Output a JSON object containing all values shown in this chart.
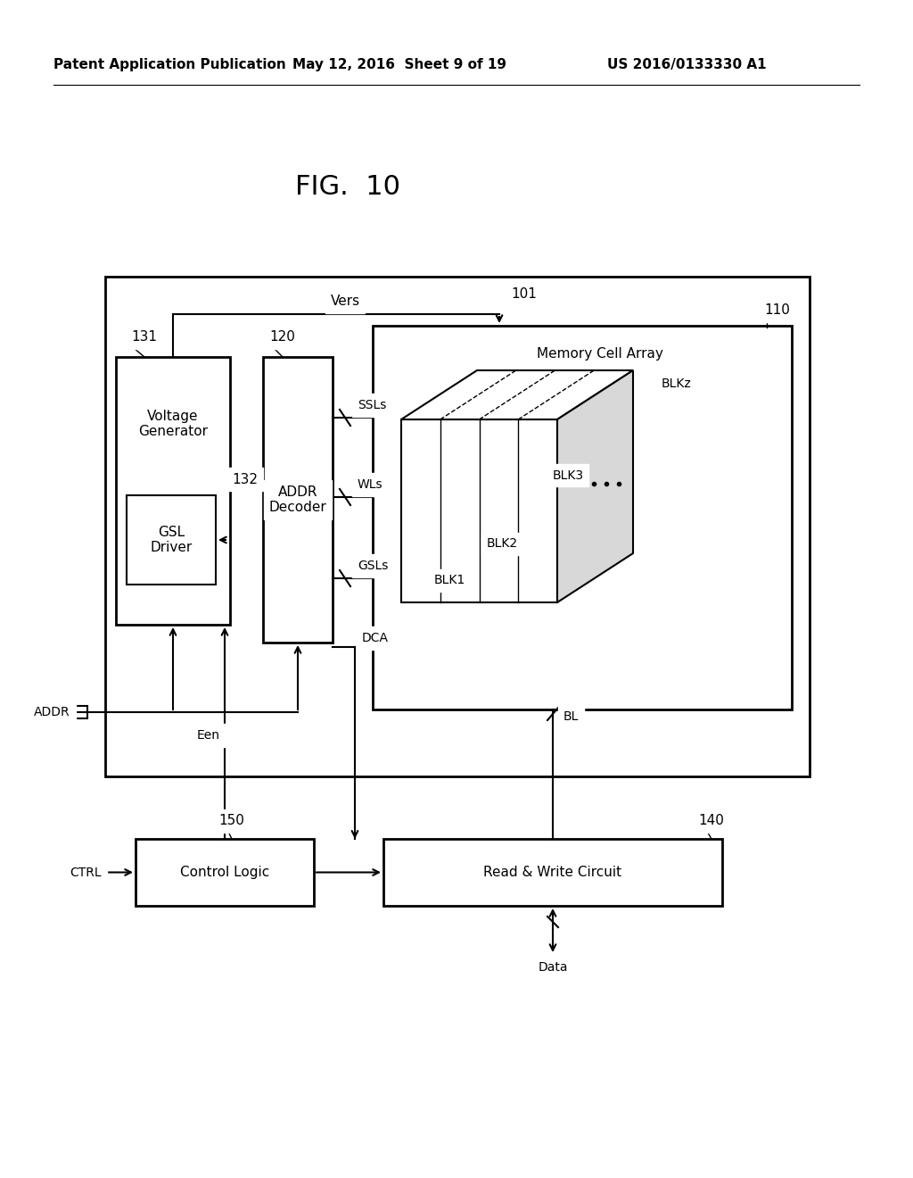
{
  "bg_color": "#ffffff",
  "header_left": "Patent Application Publication",
  "header_mid": "May 12, 2016  Sheet 9 of 19",
  "header_right": "US 2016/0133330 A1",
  "fig_title": "FIG.  10",
  "label_101": "101",
  "label_110": "110",
  "label_120": "120",
  "label_131": "131",
  "label_132": "132",
  "label_140": "140",
  "label_150": "150",
  "box_voltage_gen": "Voltage\nGenerator",
  "box_gsl_driver": "GSL\nDriver",
  "box_addr_decoder": "ADDR\nDecoder",
  "box_memory_cell_array": "Memory Cell Array",
  "box_control_logic": "Control Logic",
  "box_read_write": "Read & Write Circuit",
  "label_SSLs": "SSLs",
  "label_WLs": "WLs",
  "label_GSLs": "GSLs",
  "label_Vers": "Vers",
  "label_ADDR": "ADDR",
  "label_CTRL": "CTRL",
  "label_Een": "Een",
  "label_DCA": "DCA",
  "label_BL": "BL",
  "label_Data": "Data",
  "label_BLK1": "BLK1",
  "label_BLK2": "BLK2",
  "label_BLK3": "BLK3",
  "label_BLKz": "BLKz"
}
